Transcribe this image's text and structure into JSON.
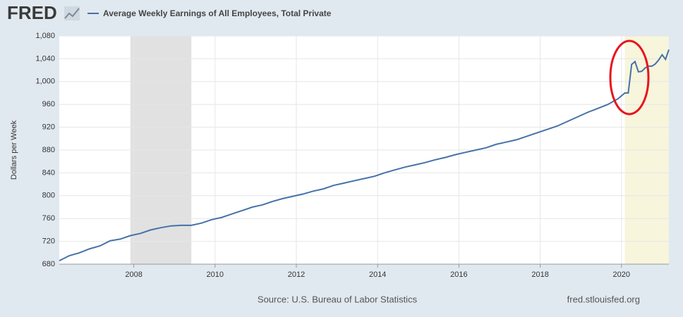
{
  "logo": "FRED",
  "chart_data": {
    "type": "line",
    "title": "Average Weekly Earnings of All Employees, Total Private",
    "y_label": "Dollars per Week",
    "source": "Source: U.S. Bureau of Labor Statistics",
    "site": "fred.stlouisfed.org",
    "x": [
      "2006-03",
      "2006-06",
      "2006-09",
      "2006-12",
      "2007-03",
      "2007-06",
      "2007-09",
      "2007-12",
      "2008-03",
      "2008-06",
      "2008-09",
      "2008-12",
      "2009-03",
      "2009-06",
      "2009-09",
      "2009-12",
      "2010-03",
      "2010-06",
      "2010-09",
      "2010-12",
      "2011-03",
      "2011-06",
      "2011-09",
      "2011-12",
      "2012-03",
      "2012-06",
      "2012-09",
      "2012-12",
      "2013-03",
      "2013-06",
      "2013-09",
      "2013-12",
      "2014-03",
      "2014-06",
      "2014-09",
      "2014-12",
      "2015-03",
      "2015-06",
      "2015-09",
      "2015-12",
      "2016-03",
      "2016-06",
      "2016-09",
      "2016-12",
      "2017-03",
      "2017-06",
      "2017-09",
      "2017-12",
      "2018-03",
      "2018-06",
      "2018-09",
      "2018-12",
      "2019-03",
      "2019-06",
      "2019-09",
      "2019-12",
      "2020-01",
      "2020-02",
      "2020-03",
      "2020-04",
      "2020-05",
      "2020-06",
      "2020-07",
      "2020-08",
      "2020-09",
      "2020-10",
      "2020-11",
      "2020-12",
      "2021-01",
      "2021-02",
      "2021-03"
    ],
    "series": [
      {
        "name": "Average Weekly Earnings of All Employees, Total Private",
        "color": "#4572a7",
        "values": [
          686,
          695,
          700,
          707,
          712,
          721,
          724,
          730,
          734,
          740,
          744,
          747,
          748,
          748,
          752,
          758,
          762,
          768,
          774,
          780,
          784,
          790,
          795,
          799,
          803,
          808,
          812,
          818,
          822,
          826,
          830,
          834,
          840,
          845,
          850,
          854,
          858,
          863,
          867,
          872,
          876,
          880,
          884,
          890,
          894,
          898,
          904,
          910,
          916,
          922,
          930,
          938,
          946,
          953,
          960,
          970,
          975,
          980,
          980,
          1030,
          1035,
          1017,
          1018,
          1024,
          1027,
          1027,
          1031,
          1038,
          1047,
          1039,
          1056
        ]
      }
    ],
    "xlim": [
      "2006-03",
      "2021-03"
    ],
    "xticks": [
      2008,
      2010,
      2012,
      2014,
      2016,
      2018,
      2020
    ],
    "ylim": [
      680,
      1080
    ],
    "yticks": [
      680,
      720,
      760,
      800,
      840,
      880,
      920,
      960,
      {
        "value": 1000,
        "label": "1,000"
      },
      {
        "value": 1040,
        "label": "1,040"
      },
      {
        "value": 1080,
        "label": "1,080"
      }
    ],
    "shaded": [
      {
        "start": "2007-12",
        "end": "2009-06",
        "color": "#e1e1e1"
      },
      {
        "start": "2020-02",
        "end": "2021-03",
        "color": "#f7f5dc"
      }
    ],
    "grid": true
  }
}
